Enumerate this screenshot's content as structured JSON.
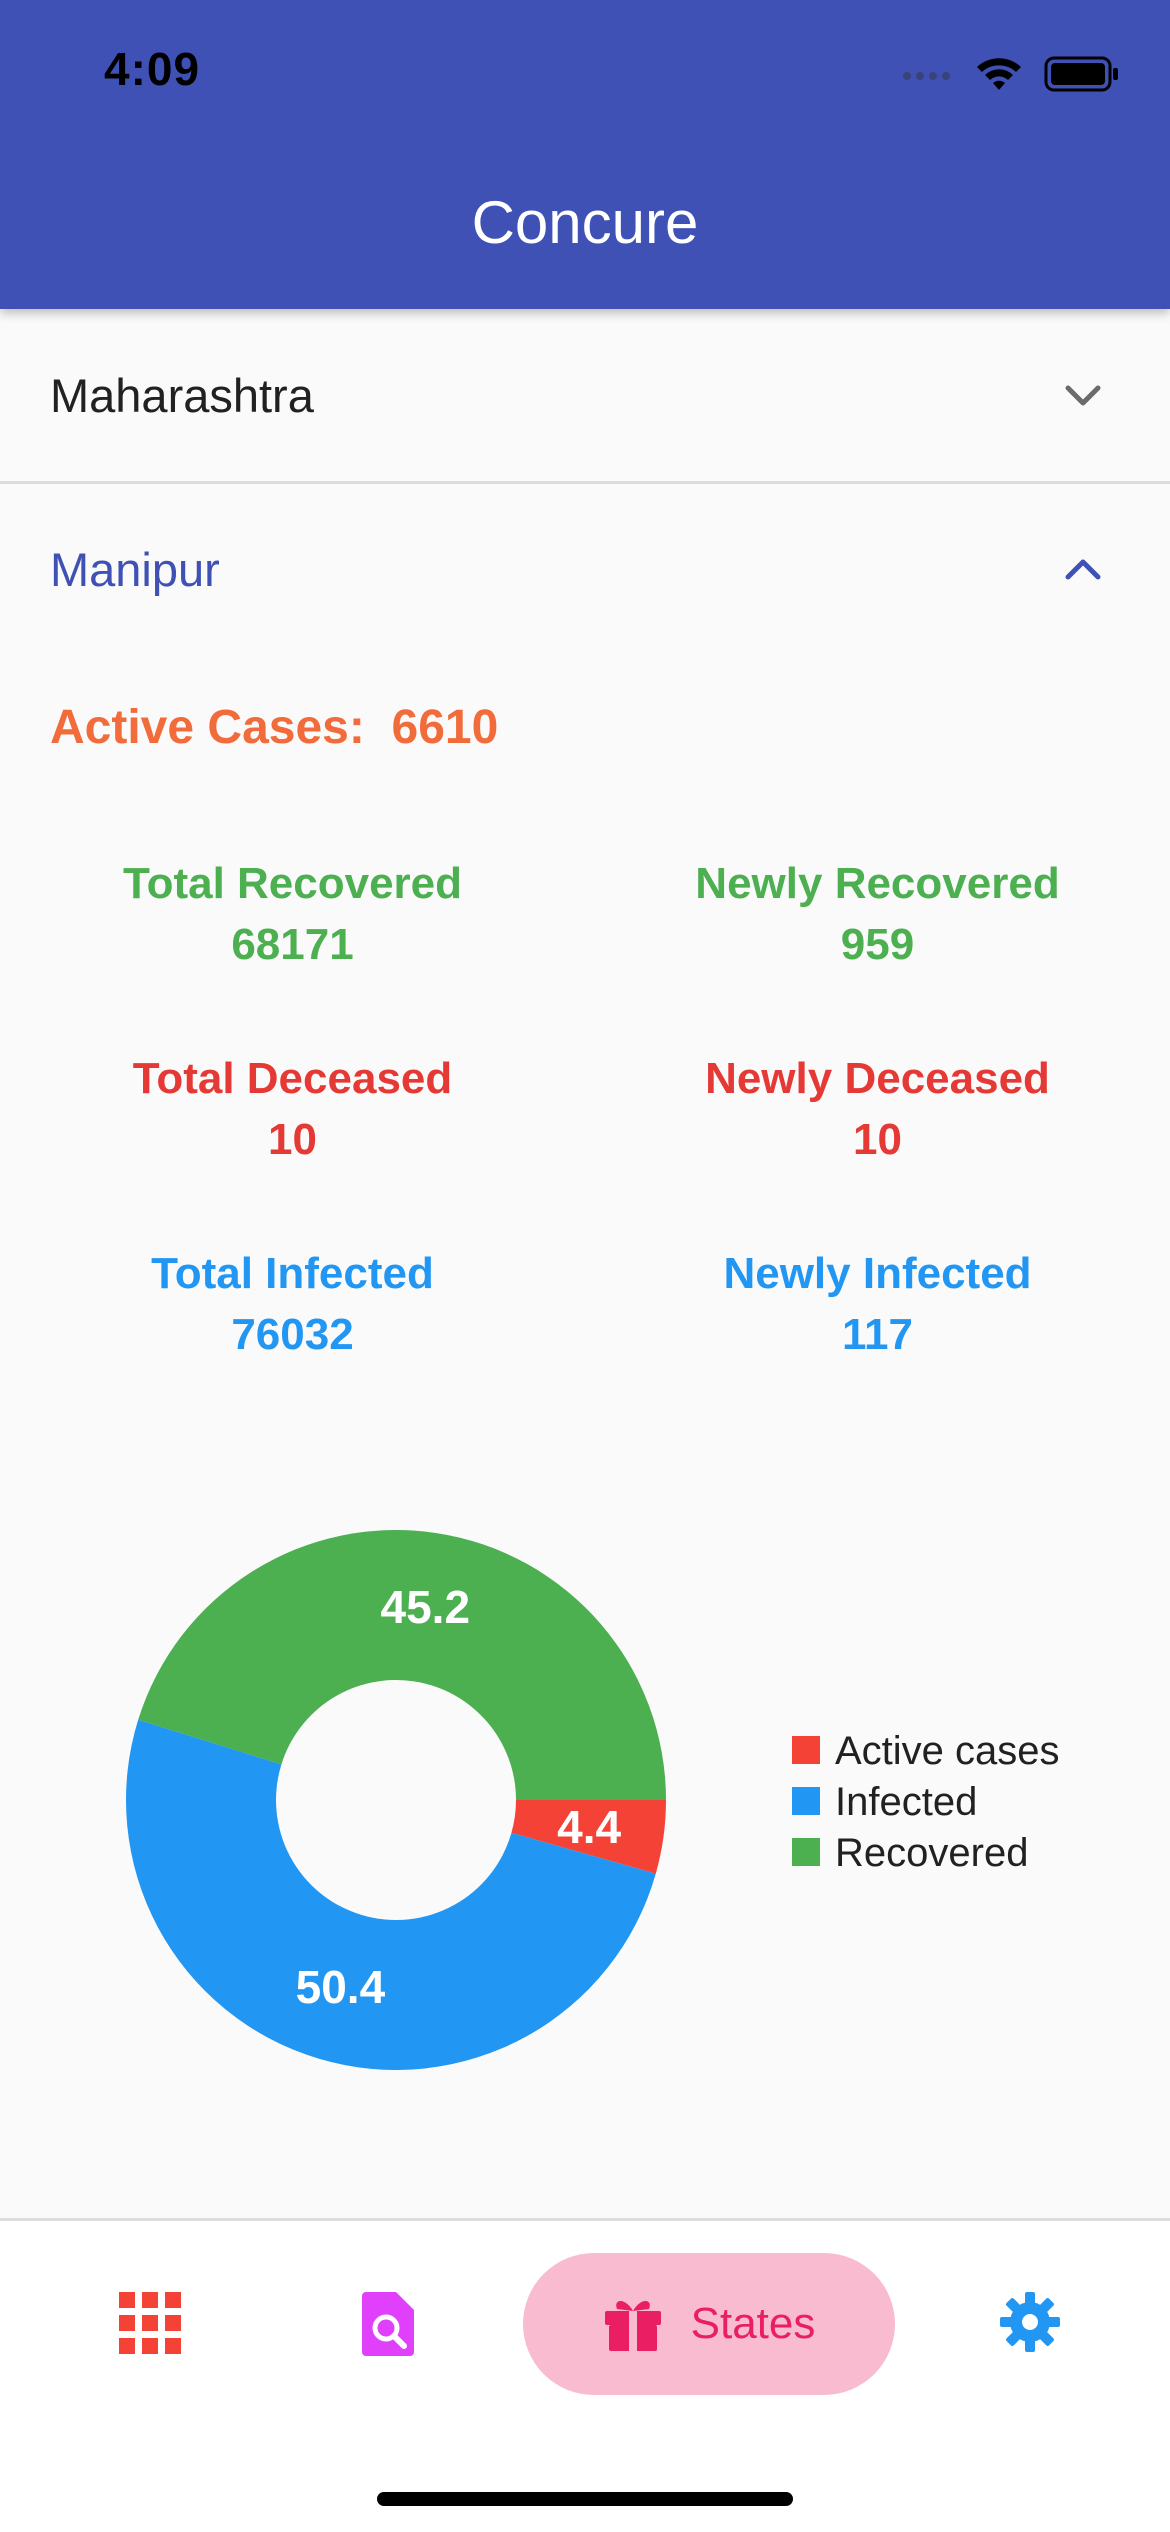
{
  "status_bar": {
    "time": "4:09"
  },
  "app_bar": {
    "title": "Concure"
  },
  "states": [
    {
      "name": "Maharashtra",
      "expanded": false
    },
    {
      "name": "Manipur",
      "expanded": true
    }
  ],
  "manipur": {
    "active_label": "Active Cases:",
    "active_value": "6610",
    "total_recovered_label": "Total Recovered",
    "total_recovered_value": "68171",
    "newly_recovered_label": "Newly Recovered",
    "newly_recovered_value": "959",
    "total_deceased_label": "Total Deceased",
    "total_deceased_value": "10",
    "newly_deceased_label": "Newly Deceased",
    "newly_deceased_value": "10",
    "total_infected_label": "Total Infected",
    "total_infected_value": "76032",
    "newly_infected_label": "Newly Infected",
    "newly_infected_value": "117"
  },
  "chart_data": {
    "type": "pie",
    "donut": true,
    "categories": [
      "Active cases",
      "Infected",
      "Recovered"
    ],
    "values": [
      4.4,
      50.4,
      45.2
    ],
    "colors": [
      "#f44336",
      "#2196f3",
      "#4caf50"
    ],
    "legend_position": "right",
    "title": ""
  },
  "bottom_nav": {
    "items": [
      {
        "icon": "grid-icon",
        "color": "#f44336"
      },
      {
        "icon": "search-document-icon",
        "color": "#e040fb"
      },
      {
        "icon": "gift-icon",
        "label": "States",
        "color": "#e91e63",
        "active": true
      },
      {
        "icon": "gear-icon",
        "color": "#2196f3"
      }
    ]
  },
  "colors": {
    "primary": "#3f51b5",
    "active_orange": "#f26b3a",
    "green": "#4caf50",
    "red": "#e53935",
    "blue": "#2196f3",
    "pill": "#f8bbd0"
  }
}
